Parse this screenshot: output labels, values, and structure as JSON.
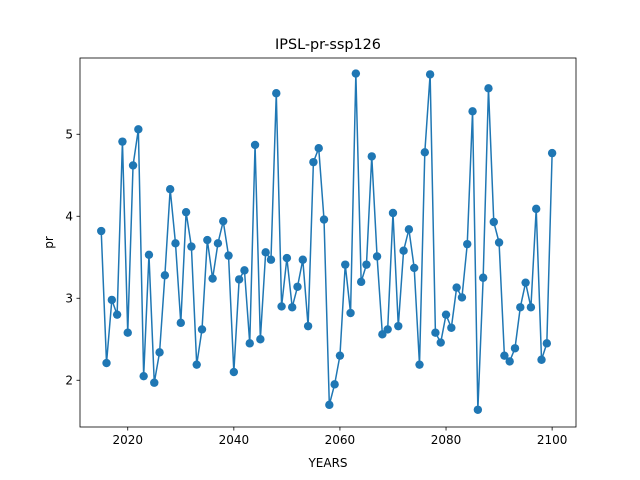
{
  "chart_data": {
    "type": "line",
    "title": "IPSL-pr-ssp126",
    "xlabel": "YEARS",
    "ylabel": "pr",
    "xlim": [
      2011,
      2104.5
    ],
    "ylim": [
      1.43,
      5.93
    ],
    "xticks": [
      2020,
      2040,
      2060,
      2080,
      2100
    ],
    "yticks": [
      2,
      3,
      4,
      5
    ],
    "grid": false,
    "color": "#1f77b4",
    "marker": "circle",
    "series": [
      {
        "x": [
          2015,
          2016,
          2017,
          2018,
          2019,
          2020,
          2021,
          2022,
          2023,
          2024,
          2025,
          2026,
          2027,
          2028,
          2029,
          2030,
          2031,
          2032,
          2033,
          2034,
          2035,
          2036,
          2037,
          2038,
          2039,
          2040,
          2041,
          2042,
          2043,
          2044,
          2045,
          2046,
          2047,
          2048,
          2049,
          2050,
          2051,
          2052,
          2053,
          2054,
          2055,
          2056,
          2057,
          2058,
          2059,
          2060,
          2061,
          2062,
          2063,
          2064,
          2065,
          2066,
          2067,
          2068,
          2069,
          2070,
          2071,
          2072,
          2073,
          2074,
          2075,
          2076,
          2077,
          2078,
          2079,
          2080,
          2081,
          2082,
          2083,
          2084,
          2085,
          2086,
          2087,
          2088,
          2089,
          2090,
          2091,
          2092,
          2093,
          2094,
          2095,
          2096,
          2097,
          2098,
          2099,
          2100
        ],
        "y": [
          3.82,
          2.21,
          2.98,
          2.8,
          4.91,
          2.58,
          4.62,
          5.06,
          2.05,
          3.53,
          1.97,
          2.34,
          3.28,
          4.33,
          3.67,
          2.7,
          4.05,
          3.63,
          2.19,
          2.62,
          3.71,
          3.24,
          3.67,
          3.94,
          3.52,
          2.1,
          3.23,
          3.34,
          2.45,
          4.87,
          2.5,
          3.56,
          3.47,
          5.5,
          2.9,
          3.49,
          2.89,
          3.14,
          3.47,
          2.66,
          4.66,
          4.83,
          3.96,
          1.7,
          1.95,
          2.3,
          3.41,
          2.82,
          5.74,
          3.2,
          3.41,
          4.73,
          3.51,
          2.56,
          2.62,
          4.04,
          2.66,
          3.58,
          3.84,
          3.37,
          2.19,
          4.78,
          5.73,
          2.58,
          2.46,
          2.8,
          2.64,
          3.13,
          3.01,
          3.66,
          5.28,
          1.64,
          3.25,
          5.56,
          3.93,
          3.68,
          2.3,
          2.23,
          2.39,
          2.89,
          3.19,
          2.89,
          4.09,
          2.25,
          2.45,
          4.77
        ]
      }
    ]
  }
}
